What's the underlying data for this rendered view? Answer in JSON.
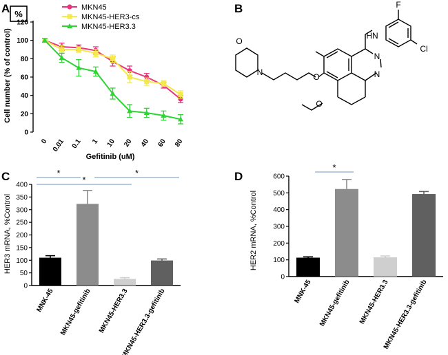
{
  "panels": {
    "A": {
      "label": "A",
      "corner_mark": "%",
      "chart_data": {
        "type": "line",
        "categories": [
          "0",
          "0.01",
          "0.1",
          "1",
          "10",
          "20",
          "40",
          "60",
          "80"
        ],
        "xlabel": "Gefitinib (uM)",
        "ylabel": "Cell number (% of control)",
        "ylim": [
          0,
          120
        ],
        "yticks": [
          0,
          20,
          40,
          60,
          80,
          100,
          120
        ],
        "legend_position": "top",
        "series": [
          {
            "name": "MKN45",
            "color": "#e8357d",
            "marker": "circle",
            "values": [
              100,
              93,
              92,
              89,
              77,
              67,
              60,
              51,
              36
            ],
            "errors": [
              2,
              4,
              3,
              4,
              5,
              5,
              4,
              3,
              4
            ]
          },
          {
            "name": "MKN45-HER3-cs",
            "color": "#f5e84a",
            "marker": "square",
            "values": [
              100,
              90,
              90,
              86,
              80,
              60,
              55,
              53,
              41
            ],
            "errors": [
              2,
              4,
              3,
              4,
              4,
              6,
              4,
              3,
              4
            ]
          },
          {
            "name": "MKN45-HER3.3",
            "color": "#2ed334",
            "marker": "triangle",
            "values": [
              100,
              81,
              70,
              66,
              42,
              23,
              21,
              18,
              14
            ],
            "errors": [
              2,
              5,
              9,
              5,
              6,
              7,
              5,
              5,
              5
            ]
          }
        ]
      }
    },
    "B": {
      "label": "B",
      "structure": "chemical-structure-gefitinib",
      "atom_labels": {
        "hn": "HN",
        "f": "F",
        "cl": "Cl",
        "o1": "O",
        "o2": "O",
        "o3": "O",
        "n1": "N",
        "n2": "N",
        "n3": "N"
      }
    },
    "C": {
      "label": "C",
      "chart_data": {
        "type": "bar",
        "categories": [
          "MNK-45",
          "MKN45-gefitinib",
          "MKN45-HER3.3",
          "MKN45-HER3.3-gefitinib"
        ],
        "values": [
          110,
          323,
          26,
          99
        ],
        "errors": [
          8,
          53,
          5,
          6
        ],
        "colors": [
          "#000000",
          "#8c8c8c",
          "#cfcfcf",
          "#606060"
        ],
        "ylabel": "HER3 mRNA, %Control",
        "xlabel": "",
        "ylim": [
          0,
          400
        ],
        "yticks": [
          0,
          50,
          100,
          150,
          200,
          250,
          300,
          350,
          400
        ],
        "significance": [
          {
            "from": 0,
            "to": 1,
            "label": "*"
          },
          {
            "from": 0,
            "to": 2,
            "label": "*"
          },
          {
            "from": 1,
            "to": 3,
            "label": "*"
          }
        ]
      }
    },
    "D": {
      "label": "D",
      "chart_data": {
        "type": "bar",
        "categories": [
          "MNK-45",
          "MKN45-gefitinib",
          "MKN45-HER3.3",
          "MKN45-HER3.3-gefitinib"
        ],
        "values": [
          113,
          523,
          115,
          493
        ],
        "errors": [
          5,
          57,
          8,
          15
        ],
        "colors": [
          "#000000",
          "#8c8c8c",
          "#cfcfcf",
          "#606060"
        ],
        "ylabel": "HER2 mRNA, %Control",
        "xlabel": "",
        "ylim": [
          0,
          600
        ],
        "yticks": [
          0,
          100,
          200,
          300,
          400,
          500,
          600
        ],
        "significance": [
          {
            "from": 0,
            "to": 1,
            "label": "*"
          }
        ]
      }
    }
  }
}
